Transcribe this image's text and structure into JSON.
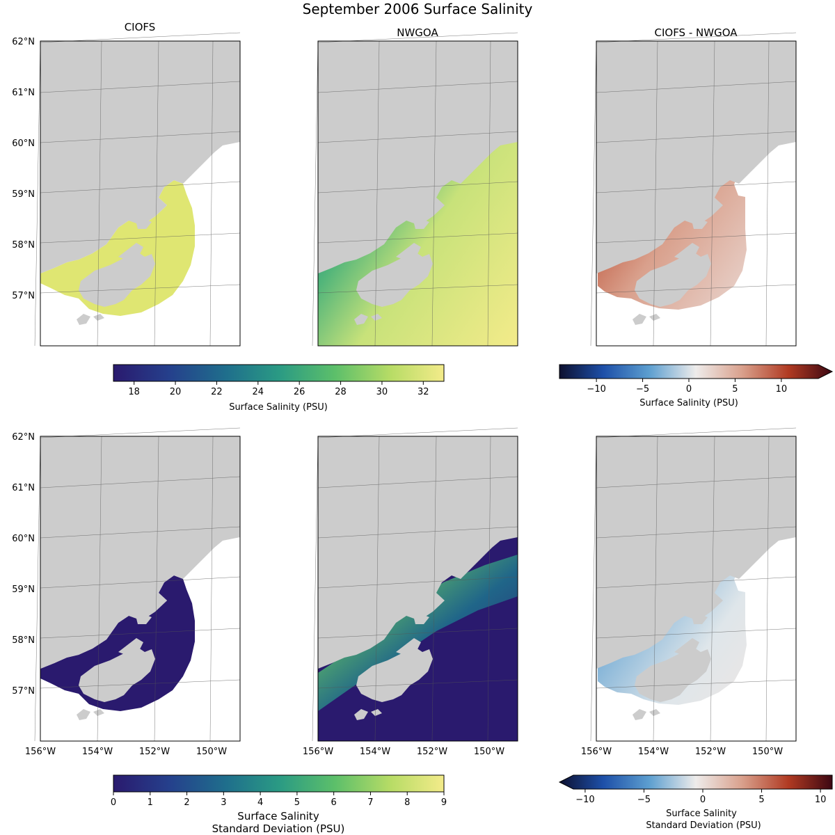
{
  "figure": {
    "title": "September 2006 Surface Salinity"
  },
  "panels": {
    "top_left_title": "CIOFS",
    "top_mid_title": "NWGOA",
    "top_right_title": "CIOFS - NWGOA"
  },
  "lat_labels": [
    "62°N",
    "61°N",
    "60°N",
    "59°N",
    "58°N",
    "57°N"
  ],
  "lon_labels": [
    "156°W",
    "154°W",
    "152°W",
    "150°W"
  ],
  "colorbars": {
    "mean": {
      "ticks": [
        "18",
        "20",
        "22",
        "24",
        "26",
        "28",
        "30",
        "32"
      ],
      "label": "Surface Salinity (PSU)",
      "range": [
        17,
        33
      ],
      "colormap": [
        "#2a1a6e",
        "#25408c",
        "#1f6e8c",
        "#2a9a84",
        "#5cbf6a",
        "#b8dc66",
        "#f3eb8a"
      ]
    },
    "mean_diff": {
      "ticks": [
        "−10",
        "−5",
        "0",
        "5",
        "10"
      ],
      "label": "Surface Salinity (PSU)",
      "range": [
        -14,
        14
      ],
      "extend": "max",
      "colormap": [
        "#0d1030",
        "#1d4fa8",
        "#5d9fd0",
        "#dfe4e6",
        "#d9b0a0",
        "#b03a22",
        "#3c0712"
      ]
    },
    "std": {
      "ticks": [
        "0",
        "1",
        "2",
        "3",
        "4",
        "5",
        "6",
        "7",
        "8",
        "9"
      ],
      "label_line1": "Surface Salinity",
      "label_line2": "Standard Deviation (PSU)",
      "range": [
        0,
        9
      ],
      "colormap": [
        "#2a1a6e",
        "#25408c",
        "#1f6e8c",
        "#2a9a84",
        "#5cbf6a",
        "#b8dc66",
        "#f3eb8a"
      ]
    },
    "std_diff": {
      "ticks": [
        "−10",
        "−5",
        "0",
        "5",
        "10"
      ],
      "label_line1": "Surface Salinity",
      "label_line2": "Standard Deviation (PSU)",
      "range": [
        -11,
        11
      ],
      "extend": "min",
      "colormap": [
        "#0d1030",
        "#1d4fa8",
        "#5d9fd0",
        "#dfe4e6",
        "#d9b0a0",
        "#b03a22",
        "#3c0712"
      ]
    }
  },
  "colors": {
    "land": "#cccccc",
    "frame": "#000000",
    "grid": "#555555"
  }
}
